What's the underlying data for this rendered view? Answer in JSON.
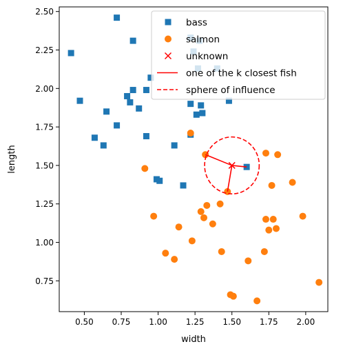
{
  "chart_data": {
    "type": "scatter",
    "title": "",
    "xlabel": "width",
    "ylabel": "length",
    "xlim": [
      0.33,
      2.15
    ],
    "ylim": [
      0.55,
      2.53
    ],
    "xticks": [
      "0.50",
      "0.75",
      "1.00",
      "1.25",
      "1.50",
      "1.75",
      "2.00"
    ],
    "xtick_values": [
      0.5,
      0.75,
      1.0,
      1.25,
      1.5,
      1.75,
      2.0
    ],
    "yticks": [
      "0.75",
      "1.00",
      "1.25",
      "1.50",
      "1.75",
      "2.00",
      "2.25",
      "2.50"
    ],
    "ytick_values": [
      0.75,
      1.0,
      1.25,
      1.5,
      1.75,
      2.0,
      2.25,
      2.5
    ],
    "grid": false,
    "legend_position": "top-right",
    "series": [
      {
        "name": "bass",
        "marker": "square",
        "color": "#1f77b4",
        "points": [
          [
            0.72,
            2.46
          ],
          [
            0.83,
            2.31
          ],
          [
            0.41,
            2.23
          ],
          [
            0.47,
            1.92
          ],
          [
            0.65,
            1.85
          ],
          [
            0.72,
            1.76
          ],
          [
            0.79,
            1.95
          ],
          [
            0.81,
            1.91
          ],
          [
            0.83,
            1.99
          ],
          [
            0.87,
            1.87
          ],
          [
            0.92,
            1.99
          ],
          [
            0.95,
            2.07
          ],
          [
            0.57,
            1.68
          ],
          [
            0.63,
            1.63
          ],
          [
            0.92,
            1.69
          ],
          [
            0.99,
            1.41
          ],
          [
            1.01,
            1.4
          ],
          [
            1.11,
            1.63
          ],
          [
            1.17,
            1.37
          ],
          [
            1.22,
            2.33
          ],
          [
            1.24,
            2.24
          ],
          [
            1.28,
            2.31
          ],
          [
            1.27,
            2.13
          ],
          [
            1.22,
            1.9
          ],
          [
            1.26,
            1.83
          ],
          [
            1.29,
            1.89
          ],
          [
            1.3,
            1.84
          ],
          [
            1.22,
            1.7
          ],
          [
            1.4,
            2.13
          ],
          [
            1.48,
            1.92
          ],
          [
            1.6,
            1.49
          ]
        ]
      },
      {
        "name": "salmon",
        "marker": "circle",
        "color": "#ff7f0e",
        "points": [
          [
            1.22,
            1.71
          ],
          [
            0.91,
            1.48
          ],
          [
            1.32,
            1.57
          ],
          [
            1.47,
            1.33
          ],
          [
            1.73,
            1.58
          ],
          [
            1.81,
            1.57
          ],
          [
            1.77,
            1.37
          ],
          [
            1.91,
            1.39
          ],
          [
            0.97,
            1.17
          ],
          [
            1.05,
            0.93
          ],
          [
            1.14,
            1.1
          ],
          [
            1.11,
            0.89
          ],
          [
            1.23,
            1.01
          ],
          [
            1.29,
            1.2
          ],
          [
            1.31,
            1.16
          ],
          [
            1.33,
            1.24
          ],
          [
            1.37,
            1.12
          ],
          [
            1.42,
            1.25
          ],
          [
            1.43,
            0.94
          ],
          [
            1.49,
            0.66
          ],
          [
            1.51,
            0.65
          ],
          [
            1.61,
            0.88
          ],
          [
            1.67,
            0.62
          ],
          [
            1.72,
            0.94
          ],
          [
            1.73,
            1.15
          ],
          [
            1.75,
            1.08
          ],
          [
            1.78,
            1.15
          ],
          [
            1.8,
            1.09
          ],
          [
            1.98,
            1.17
          ],
          [
            2.09,
            0.74
          ]
        ]
      },
      {
        "name": "unknown",
        "marker": "x",
        "color": "#ff0000",
        "points": [
          [
            1.5,
            1.5
          ]
        ]
      }
    ],
    "nearest_lines": {
      "name": "one of the k closest fish",
      "color": "#ff0000",
      "from": [
        1.5,
        1.5
      ],
      "to": [
        [
          1.32,
          1.57
        ],
        [
          1.47,
          1.33
        ],
        [
          1.6,
          1.49
        ]
      ]
    },
    "influence_circle": {
      "name": "sphere of influence",
      "color": "#ff0000",
      "center": [
        1.5,
        1.5
      ],
      "radius": 0.185
    },
    "legend": [
      {
        "label": "bass",
        "kind": "square",
        "color": "#1f77b4"
      },
      {
        "label": "salmon",
        "kind": "circle",
        "color": "#ff7f0e"
      },
      {
        "label": "unknown",
        "kind": "x",
        "color": "#ff0000"
      },
      {
        "label": "one of the k closest fish",
        "kind": "line",
        "color": "#ff0000"
      },
      {
        "label": "sphere of influence",
        "kind": "dashed",
        "color": "#ff0000"
      }
    ]
  }
}
